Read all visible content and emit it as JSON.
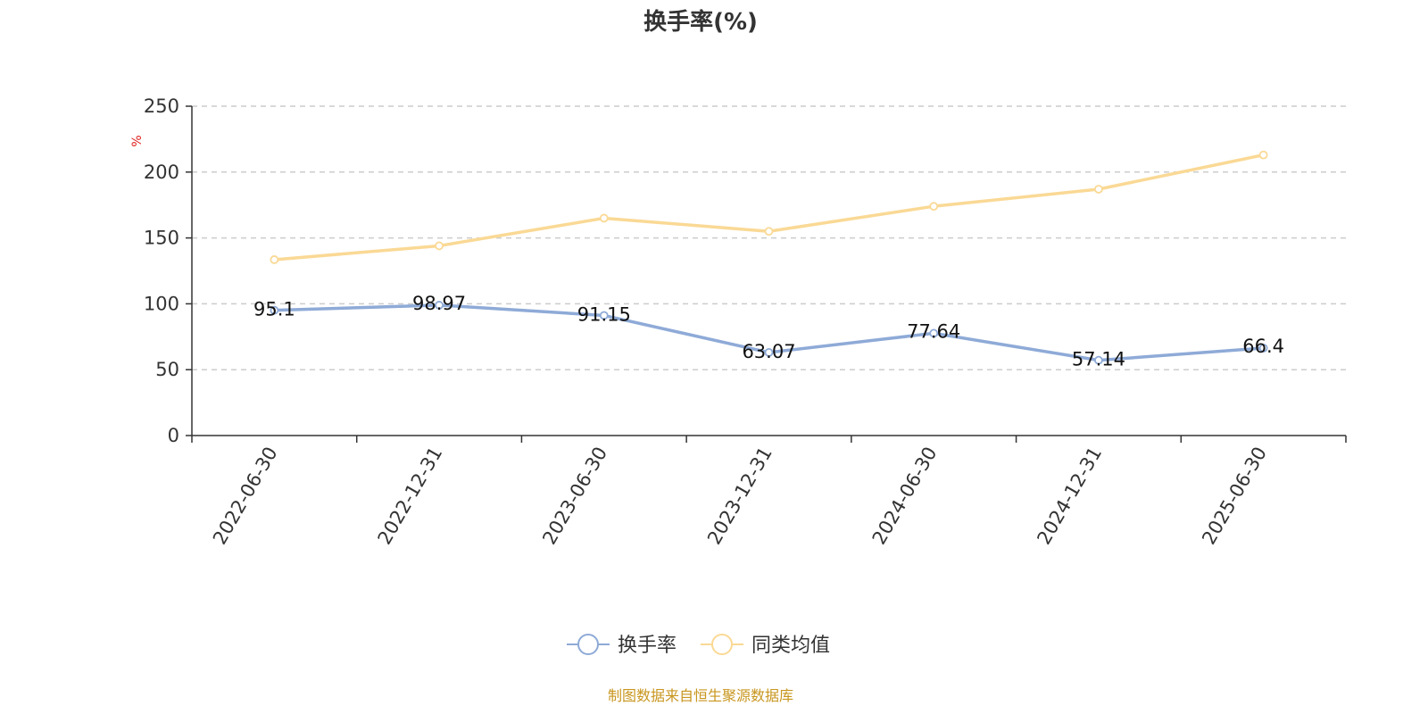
{
  "chart_data": {
    "type": "line",
    "title": "换手率(%)",
    "y_unit": "%",
    "categories": [
      "2022-06-30",
      "2022-12-31",
      "2023-06-30",
      "2023-12-31",
      "2024-06-30",
      "2024-12-31",
      "2025-06-30"
    ],
    "ylim": [
      0,
      250
    ],
    "yticks": [
      0,
      50,
      100,
      150,
      200,
      250
    ],
    "grid": true,
    "legend_position": "bottom",
    "series": [
      {
        "name": "换手率",
        "color": "#8eaad7",
        "values": [
          95.1,
          98.97,
          91.15,
          63.07,
          77.64,
          57.14,
          66.4
        ],
        "data_labels": [
          "95.1",
          "98.97",
          "91.15",
          "63.07",
          "77.64",
          "57.14",
          "66.4"
        ]
      },
      {
        "name": "同类均值",
        "color": "#fad995",
        "values": [
          133.5,
          144,
          165,
          155,
          174,
          187,
          213
        ]
      }
    ]
  },
  "source_note": "制图数据来自恒生聚源数据库",
  "colors": {
    "unit": "#e02020",
    "source": "#c8961e",
    "axis": "#333333",
    "grid": "#cccccc"
  }
}
